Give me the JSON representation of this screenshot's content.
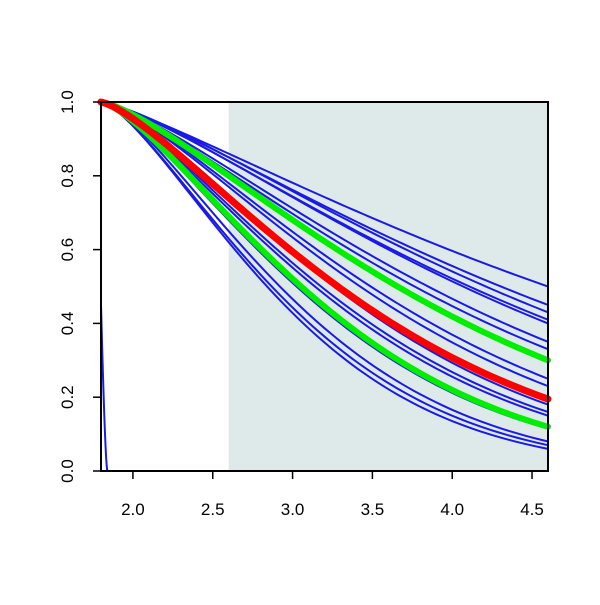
{
  "chart_data": {
    "type": "line",
    "title": "",
    "xlabel": "",
    "ylabel": "",
    "xlim": [
      1.8,
      4.6
    ],
    "ylim": [
      0.0,
      1.0
    ],
    "x_ticks": [
      "2.0",
      "2.5",
      "3.0",
      "3.5",
      "4.0",
      "4.5"
    ],
    "y_ticks": [
      "0.0",
      "0.2",
      "0.4",
      "0.6",
      "0.8",
      "1.0"
    ],
    "shaded_region": {
      "x_from": 2.6,
      "x_to": 4.6,
      "color": "#deeaea"
    },
    "grid": false,
    "legend": "none",
    "x_start": 1.8,
    "x_end": 4.6,
    "colors": {
      "blue": "#1a1ae6",
      "green": "#00ee00",
      "red": "#ff0000"
    },
    "series": [
      {
        "color": "blue",
        "width": 2,
        "values_at_end": 0.5,
        "values_at_2_6": 0.86
      },
      {
        "color": "blue",
        "width": 2,
        "values_at_end": 0.45,
        "values_at_2_6": 0.85
      },
      {
        "color": "blue",
        "width": 2,
        "values_at_end": 0.43,
        "values_at_2_6": 0.85
      },
      {
        "color": "blue",
        "width": 2,
        "values_at_end": 0.41,
        "values_at_2_6": 0.84
      },
      {
        "color": "blue",
        "width": 2,
        "values_at_end": 0.4,
        "values_at_2_6": 0.84
      },
      {
        "color": "blue",
        "width": 2,
        "values_at_end": 0.35,
        "values_at_2_6": 0.82
      },
      {
        "color": "blue",
        "width": 2,
        "values_at_end": 0.33,
        "values_at_2_6": 0.81
      },
      {
        "color": "green",
        "width": 6,
        "values_at_end": 0.3,
        "values_at_2_6": 0.8
      },
      {
        "color": "blue",
        "width": 2,
        "values_at_end": 0.25,
        "values_at_2_6": 0.78
      },
      {
        "color": "blue",
        "width": 2,
        "values_at_end": 0.23,
        "values_at_2_6": 0.77
      },
      {
        "color": "red",
        "width": 7,
        "values_at_end": 0.195,
        "values_at_2_6": 0.74
      },
      {
        "color": "blue",
        "width": 2,
        "values_at_end": 0.18,
        "values_at_2_6": 0.74
      },
      {
        "color": "blue",
        "width": 2,
        "values_at_end": 0.16,
        "values_at_2_6": 0.72
      },
      {
        "color": "blue",
        "width": 2,
        "values_at_end": 0.15,
        "values_at_2_6": 0.71
      },
      {
        "color": "green",
        "width": 6,
        "values_at_end": 0.12,
        "values_at_2_6": 0.69
      },
      {
        "color": "blue",
        "width": 2,
        "values_at_end": 0.115,
        "values_at_2_6": 0.68
      },
      {
        "color": "blue",
        "width": 2,
        "values_at_end": 0.08,
        "values_at_2_6": 0.65
      },
      {
        "color": "blue",
        "width": 2,
        "values_at_end": 0.07,
        "values_at_2_6": 0.63
      },
      {
        "color": "blue",
        "width": 2,
        "values_at_end": 0.06,
        "values_at_2_6": 0.62
      }
    ],
    "spike_series": {
      "color": "blue",
      "x_peak": 1.82,
      "y_peak": 0.45,
      "x_zero": 1.84
    }
  }
}
